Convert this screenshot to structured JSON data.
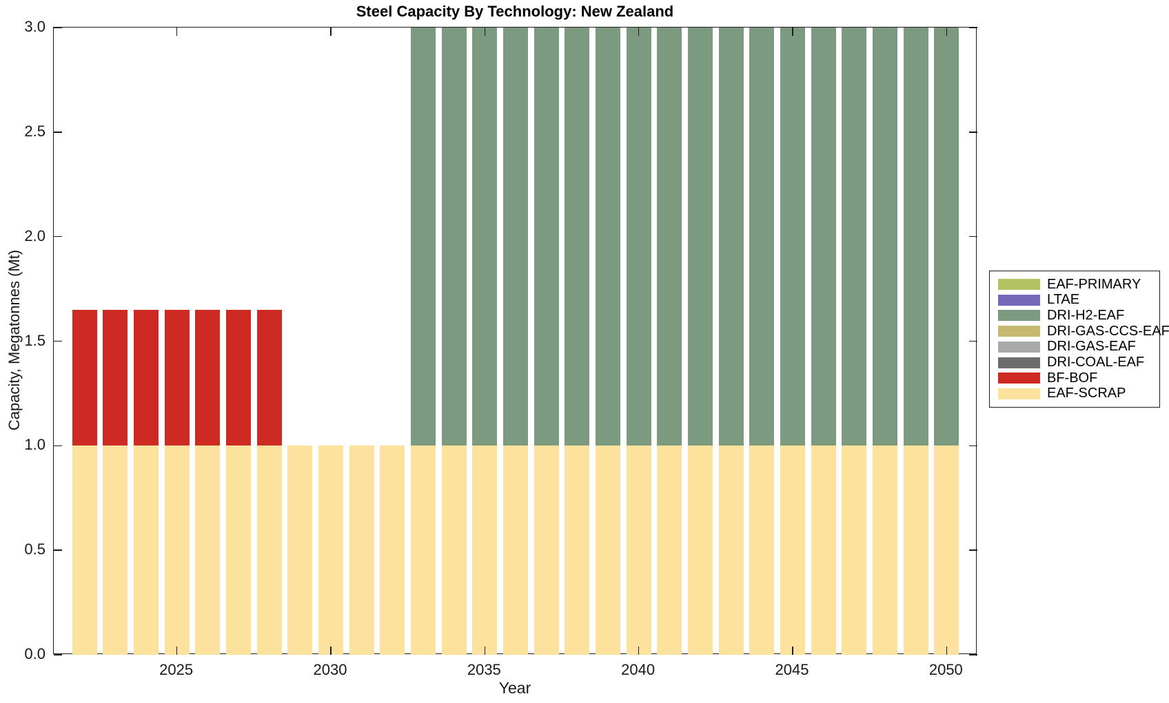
{
  "chart_data": {
    "type": "bar",
    "stacked": true,
    "title": "Steel Capacity By Technology: New Zealand",
    "xlabel": "Year",
    "ylabel": "Capacity, Megatonnes (Mt)",
    "xlim": [
      2021,
      2051
    ],
    "ylim": [
      0,
      3
    ],
    "grid": false,
    "bar_width_fraction": 0.8,
    "xticks": {
      "values": [
        2025,
        2030,
        2035,
        2040,
        2045,
        2050
      ],
      "labels": [
        "2025",
        "2030",
        "2035",
        "2040",
        "2045",
        "2050"
      ]
    },
    "yticks": {
      "values": [
        0,
        0.5,
        1,
        1.5,
        2,
        2.5,
        3
      ],
      "labels": [
        "0.0",
        "0.5",
        "1.0",
        "1.5",
        "2.0",
        "2.5",
        "3.0"
      ]
    },
    "categories": [
      2022,
      2023,
      2024,
      2025,
      2026,
      2027,
      2028,
      2029,
      2030,
      2031,
      2032,
      2033,
      2034,
      2035,
      2036,
      2037,
      2038,
      2039,
      2040,
      2041,
      2042,
      2043,
      2044,
      2045,
      2046,
      2047,
      2048,
      2049,
      2050
    ],
    "series": [
      {
        "name": "EAF-SCRAP",
        "color": "#fce29c",
        "values": [
          1,
          1,
          1,
          1,
          1,
          1,
          1,
          1,
          1,
          1,
          1,
          1,
          1,
          1,
          1,
          1,
          1,
          1,
          1,
          1,
          1,
          1,
          1,
          1,
          1,
          1,
          1,
          1,
          1
        ]
      },
      {
        "name": "BF-BOF",
        "color": "#cc2a23",
        "values": [
          0.65,
          0.65,
          0.65,
          0.65,
          0.65,
          0.65,
          0.65,
          0,
          0,
          0,
          0,
          0,
          0,
          0,
          0,
          0,
          0,
          0,
          0,
          0,
          0,
          0,
          0,
          0,
          0,
          0,
          0,
          0,
          0
        ]
      },
      {
        "name": "DRI-COAL-EAF",
        "color": "#6d6d6d",
        "values": [
          0,
          0,
          0,
          0,
          0,
          0,
          0,
          0,
          0,
          0,
          0,
          0,
          0,
          0,
          0,
          0,
          0,
          0,
          0,
          0,
          0,
          0,
          0,
          0,
          0,
          0,
          0,
          0,
          0
        ]
      },
      {
        "name": "DRI-GAS-EAF",
        "color": "#a9a9a9",
        "values": [
          0,
          0,
          0,
          0,
          0,
          0,
          0,
          0,
          0,
          0,
          0,
          0,
          0,
          0,
          0,
          0,
          0,
          0,
          0,
          0,
          0,
          0,
          0,
          0,
          0,
          0,
          0,
          0,
          0
        ]
      },
      {
        "name": "DRI-GAS-CCS-EAF",
        "color": "#c7ba70",
        "values": [
          0,
          0,
          0,
          0,
          0,
          0,
          0,
          0,
          0,
          0,
          0,
          0,
          0,
          0,
          0,
          0,
          0,
          0,
          0,
          0,
          0,
          0,
          0,
          0,
          0,
          0,
          0,
          0,
          0
        ]
      },
      {
        "name": "DRI-H2-EAF",
        "color": "#7b9a80",
        "values": [
          0,
          0,
          0,
          0,
          0,
          0,
          0,
          0,
          0,
          0,
          0,
          2,
          2,
          2,
          2,
          2,
          2,
          2,
          2,
          2,
          2,
          2,
          2,
          2,
          2,
          2,
          2,
          2,
          2
        ]
      },
      {
        "name": "LTAE",
        "color": "#7568b8",
        "values": [
          0,
          0,
          0,
          0,
          0,
          0,
          0,
          0,
          0,
          0,
          0,
          0,
          0,
          0,
          0,
          0,
          0,
          0,
          0,
          0,
          0,
          0,
          0,
          0,
          0,
          0,
          0,
          0,
          0
        ]
      },
      {
        "name": "EAF-PRIMARY",
        "color": "#b5c263",
        "values": [
          0,
          0,
          0,
          0,
          0,
          0,
          0,
          0,
          0,
          0,
          0,
          0,
          0,
          0,
          0,
          0,
          0,
          0,
          0,
          0,
          0,
          0,
          0,
          0,
          0,
          0,
          0,
          0,
          0
        ]
      }
    ],
    "legend": {
      "position": "right",
      "entries": [
        {
          "label": "EAF-PRIMARY",
          "color": "#b5c263"
        },
        {
          "label": "LTAE",
          "color": "#7568b8"
        },
        {
          "label": "DRI-H2-EAF",
          "color": "#7b9a80"
        },
        {
          "label": "DRI-GAS-CCS-EAF",
          "color": "#c7ba70"
        },
        {
          "label": "DRI-GAS-EAF",
          "color": "#a9a9a9"
        },
        {
          "label": "DRI-COAL-EAF",
          "color": "#6d6d6d"
        },
        {
          "label": "BF-BOF",
          "color": "#cc2a23"
        },
        {
          "label": "EAF-SCRAP",
          "color": "#fce29c"
        }
      ]
    }
  },
  "colors": {
    "axis": "#1a1a1a",
    "background": "#ffffff"
  }
}
